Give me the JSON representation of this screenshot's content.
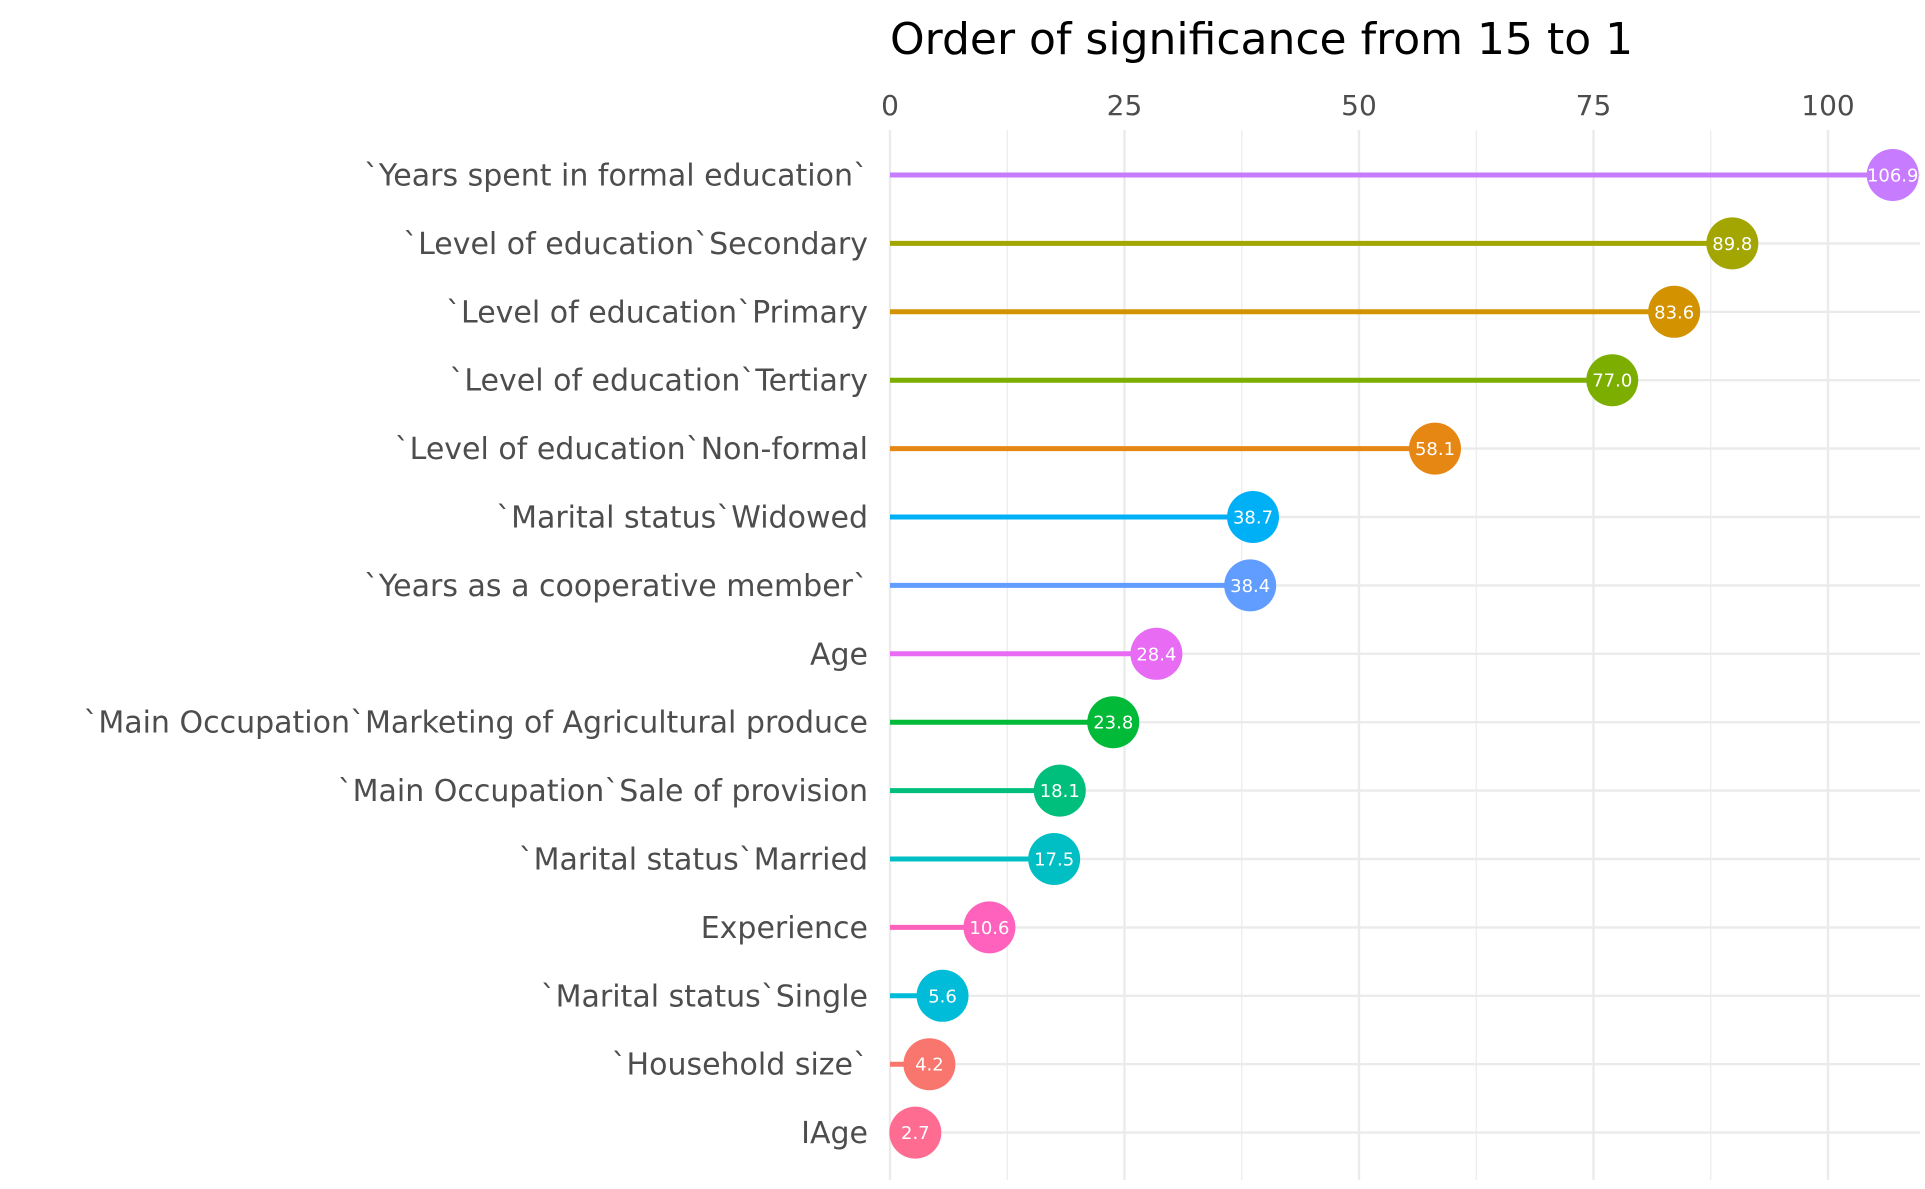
{
  "chart_data": {
    "type": "lollipop",
    "title": "Order of significance from 15 to 1",
    "xlabel": "",
    "ylabel": "",
    "xlim": [
      0,
      110
    ],
    "x_ticks": [
      0,
      25,
      50,
      75,
      100
    ],
    "x_axis_position": "top",
    "grid": true,
    "legend": "none",
    "categories": [
      "`Years spent in formal education`",
      "`Level  of education`Secondary",
      "`Level  of education`Primary",
      "`Level  of education`Tertiary",
      "`Level  of education`Non-formal",
      "`Marital status`Widowed",
      "`Years as a cooperative member`",
      "Age",
      "`Main Occupation`Marketing of Agricultural produce",
      "`Main Occupation`Sale of provision",
      "`Marital status`Married",
      "Experience",
      "`Marital status`Single",
      "`Household size`",
      "IAge"
    ],
    "values": [
      106.9,
      89.8,
      83.6,
      77.0,
      58.1,
      38.7,
      38.4,
      28.4,
      23.8,
      18.1,
      17.5,
      10.6,
      5.6,
      4.2,
      2.7
    ],
    "labels": [
      "106.9",
      "89.8",
      "83.6",
      "77.0",
      "58.1",
      "38.7",
      "38.4",
      "28.4",
      "23.8",
      "18.1",
      "17.5",
      "10.6",
      "5.6",
      "4.2",
      "2.7"
    ],
    "colors": [
      "#C77CFF",
      "#A3A500",
      "#D39200",
      "#7CAE00",
      "#E68613",
      "#00B0F6",
      "#619CFF",
      "#E76BF3",
      "#00BA38",
      "#00BF7D",
      "#00BFC4",
      "#FF62BC",
      "#00BCD8",
      "#F8766D",
      "#FF6C91"
    ]
  }
}
